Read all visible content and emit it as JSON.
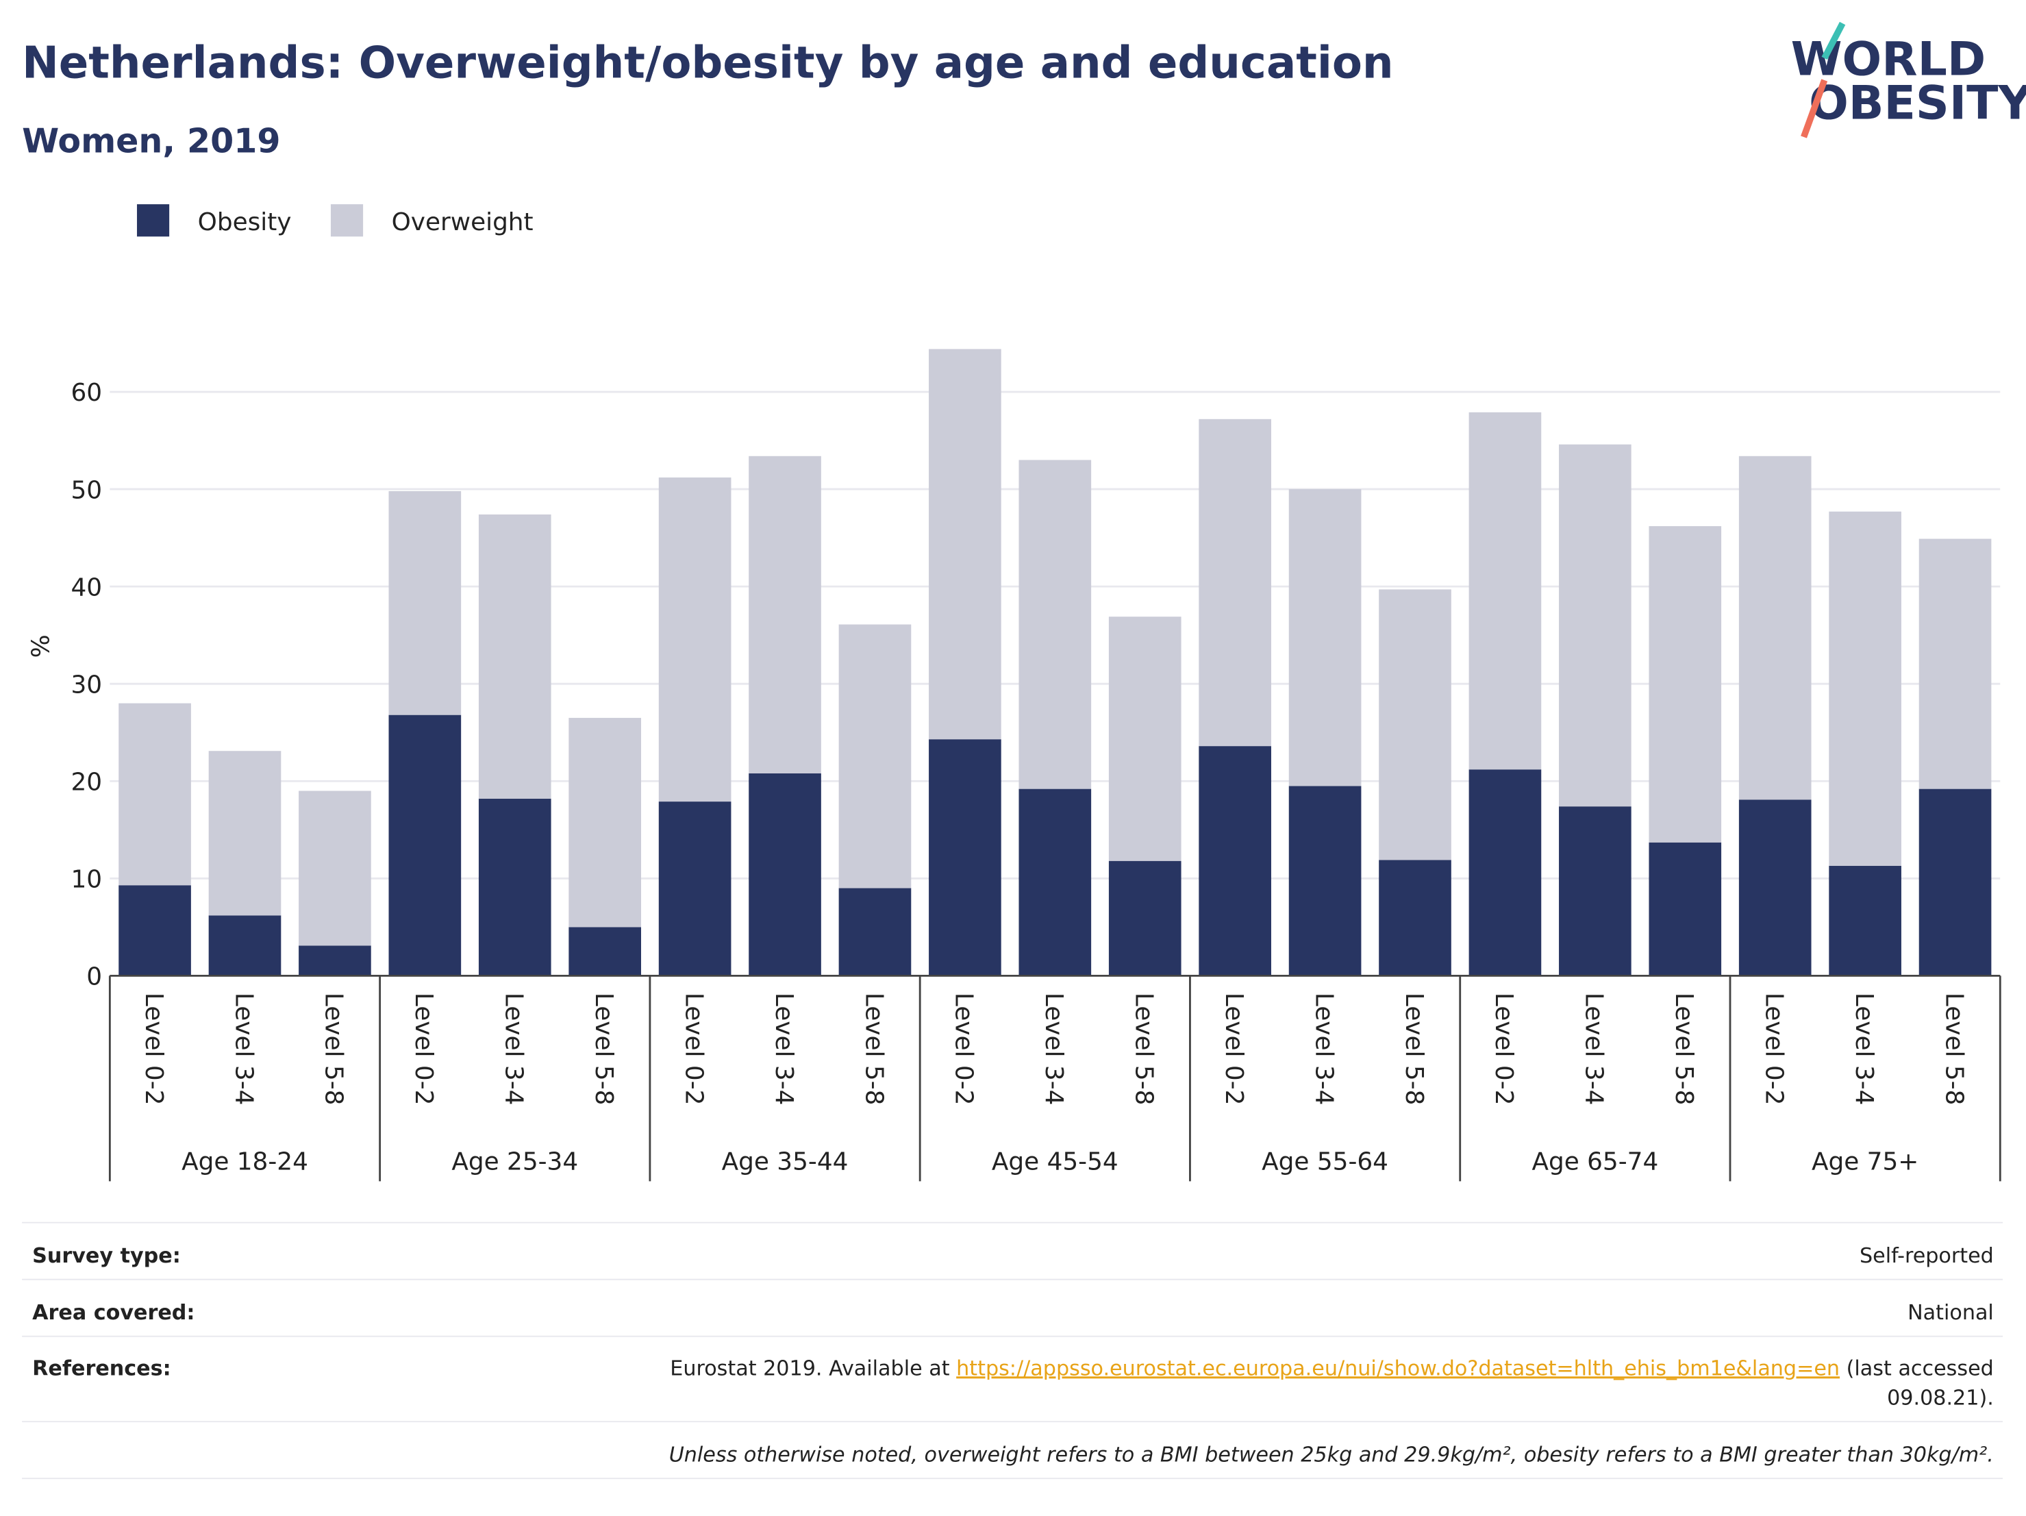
{
  "title": "Netherlands: Overweight/obesity by age and education",
  "subtitle": "Women, 2019",
  "logo": [
    "WORLD",
    "OBESITY"
  ],
  "chart_data": {
    "type": "stacked-bar",
    "y_label": "%",
    "groups": [
      "Age 18-24",
      "Age 25-34",
      "Age 35-44",
      "Age 45-54",
      "Age 55-64",
      "Age 65-74",
      "Age 75+"
    ],
    "categories": [
      "Level 0-2",
      "Level 3-4",
      "Level 5-8",
      "Level 0-2",
      "Level 3-4",
      "Level 5-8",
      "Level 0-2",
      "Level 3-4",
      "Level 5-8",
      "Level 0-2",
      "Level 3-4",
      "Level 5-8",
      "Level 0-2",
      "Level 3-4",
      "Level 5-8",
      "Level 0-2",
      "Level 3-4",
      "Level 5-8",
      "Level 0-2",
      "Level 3-4",
      "Level 5-8"
    ],
    "series": [
      {
        "name": "Obesity",
        "color": "#283562",
        "values": [
          9.3,
          6.2,
          3.1,
          26.8,
          18.2,
          5.0,
          17.9,
          20.8,
          9.0,
          24.3,
          19.2,
          11.8,
          23.6,
          19.5,
          11.9,
          21.2,
          17.4,
          13.7,
          18.1,
          11.3,
          19.2
        ]
      },
      {
        "name": "Overweight",
        "color": "#cbccd8",
        "values": [
          18.7,
          16.9,
          15.9,
          23.0,
          29.2,
          21.5,
          33.3,
          32.6,
          27.1,
          40.1,
          33.8,
          25.1,
          33.6,
          30.5,
          27.8,
          36.7,
          37.2,
          32.5,
          35.3,
          36.4,
          25.7
        ]
      }
    ],
    "ylim": [
      0,
      66
    ],
    "yticks": [
      0,
      10,
      20,
      30,
      40,
      50,
      60
    ],
    "grid": true,
    "legend": "top-left"
  },
  "footer": {
    "survey": {
      "label": "Survey type:",
      "value": "Self-reported"
    },
    "area": {
      "label": "Area covered:",
      "value": "National"
    },
    "references": {
      "label": "References:",
      "prefix": "Eurostat 2019. Available at",
      "link": "https://appsso.eurostat.ec.europa.eu/nui/show.do?dataset=hlth_ehis_bm1e&lang=en",
      "suffix": "(last accessed",
      "continuation": "09.08.21)."
    },
    "note": "Unless otherwise noted, overweight refers to a BMI between 25kg and 29.9kg/m², obesity refers to a BMI greater than 30kg/m²."
  }
}
